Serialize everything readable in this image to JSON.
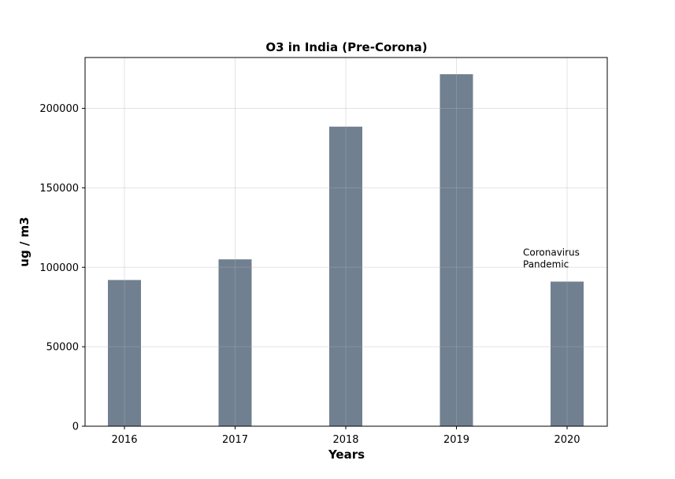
{
  "chart_data": {
    "type": "bar",
    "title": "O3 in India (Pre-Corona)",
    "xlabel": "Years",
    "ylabel": "ug / m3",
    "categories": [
      "2016",
      "2017",
      "2018",
      "2019",
      "2020"
    ],
    "values": [
      92000,
      105000,
      188500,
      221500,
      91000
    ],
    "ylim": [
      0,
      232000
    ],
    "yticks": [
      0,
      50000,
      100000,
      150000,
      200000
    ],
    "grid": true,
    "bar_color": "#708090",
    "annotation": {
      "lines": [
        "Coronavirus",
        "Pandemic"
      ],
      "x_category": "2020",
      "y": 100000
    }
  }
}
